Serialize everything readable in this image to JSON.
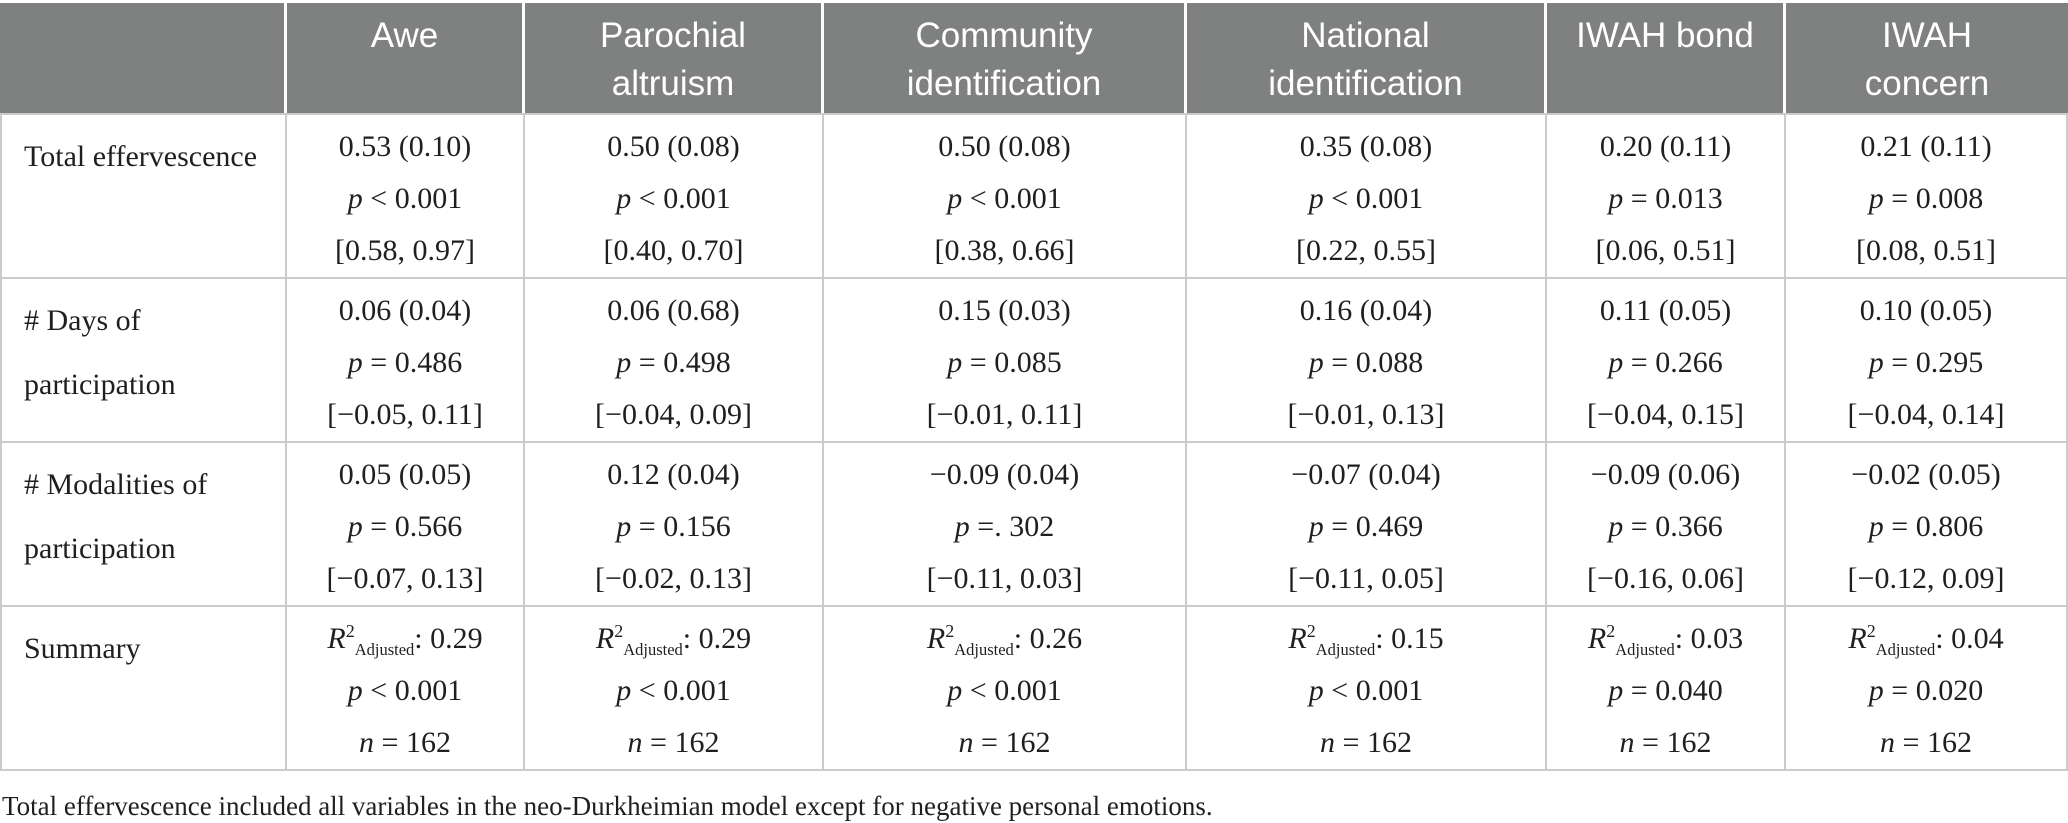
{
  "table": {
    "column_headers": [
      {
        "id": "row-variable",
        "lines": []
      },
      {
        "id": "awe",
        "lines": [
          "Awe"
        ]
      },
      {
        "id": "parochial-altruism",
        "lines": [
          "Parochial",
          "altruism"
        ]
      },
      {
        "id": "community-identification",
        "lines": [
          "Community",
          "identification"
        ]
      },
      {
        "id": "national-identification",
        "lines": [
          "National",
          "identification"
        ]
      },
      {
        "id": "iwah-bond",
        "lines": [
          "IWAH bond"
        ]
      },
      {
        "id": "iwah-concern",
        "lines": [
          "IWAH",
          "concern"
        ]
      }
    ],
    "rows": [
      {
        "id": "total-effervescence",
        "label_lines": [
          "Total effervescence"
        ],
        "type": "coef",
        "cells": [
          [
            "0.53 (0.10)",
            "p < 0.001",
            "[0.58, 0.97]"
          ],
          [
            "0.50 (0.08)",
            "p < 0.001",
            "[0.40, 0.70]"
          ],
          [
            "0.50 (0.08)",
            "p < 0.001",
            "[0.38, 0.66]"
          ],
          [
            "0.35 (0.08)",
            "p < 0.001",
            "[0.22, 0.55]"
          ],
          [
            "0.20 (0.11)",
            "p = 0.013",
            "[0.06, 0.51]"
          ],
          [
            "0.21 (0.11)",
            "p = 0.008",
            "[0.08, 0.51]"
          ]
        ]
      },
      {
        "id": "days-of-participation",
        "label_lines": [
          "# Days of",
          "participation"
        ],
        "type": "coef",
        "cells": [
          [
            "0.06 (0.04)",
            "p = 0.486",
            "[−0.05, 0.11]"
          ],
          [
            "0.06 (0.68)",
            "p = 0.498",
            "[−0.04, 0.09]"
          ],
          [
            "0.15 (0.03)",
            "p = 0.085",
            "[−0.01, 0.11]"
          ],
          [
            "0.16 (0.04)",
            "p = 0.088",
            "[−0.01, 0.13]"
          ],
          [
            "0.11 (0.05)",
            "p = 0.266",
            "[−0.04, 0.15]"
          ],
          [
            "0.10 (0.05)",
            "p = 0.295",
            "[−0.04, 0.14]"
          ]
        ]
      },
      {
        "id": "modalities-of-participation",
        "label_lines": [
          "# Modalities of",
          "participation"
        ],
        "type": "coef",
        "cells": [
          [
            "0.05 (0.05)",
            "p = 0.566",
            "[−0.07, 0.13]"
          ],
          [
            "0.12 (0.04)",
            "p = 0.156",
            "[−0.02, 0.13]"
          ],
          [
            "−0.09 (0.04)",
            "p =. 302",
            "[−0.11, 0.03]"
          ],
          [
            "−0.07 (0.04)",
            "p = 0.469",
            "[−0.11, 0.05]"
          ],
          [
            "−0.09 (0.06)",
            "p = 0.366",
            "[−0.16, 0.06]"
          ],
          [
            "−0.02 (0.05)",
            "p = 0.806",
            "[−0.12, 0.09]"
          ]
        ]
      },
      {
        "id": "summary",
        "label_lines": [
          "Summary"
        ],
        "type": "summary",
        "cells": [
          {
            "r2": "0.29",
            "p_line": "p < 0.001",
            "n_line": "n = 162"
          },
          {
            "r2": "0.29",
            "p_line": "p < 0.001",
            "n_line": "n = 162"
          },
          {
            "r2": "0.26",
            "p_line": "p < 0.001",
            "n_line": "n = 162"
          },
          {
            "r2": "0.15",
            "p_line": "p < 0.001",
            "n_line": "n = 162"
          },
          {
            "r2": "0.03",
            "p_line": "p = 0.040",
            "n_line": "n = 162"
          },
          {
            "r2": "0.04",
            "p_line": "p = 0.020",
            "n_line": "n = 162"
          }
        ]
      }
    ],
    "r2_notation": {
      "base": "R",
      "sup": "2",
      "sub": "Adjusted",
      "sep": ": "
    },
    "footnote": "Total effervescence included all variables in the neo-Durkheimian model except for negative personal emotions."
  },
  "colors": {
    "header_bg": "#7f8180",
    "header_text": "#ffffff",
    "body_text": "#1f1f1f",
    "grid_line": "#cbccca"
  }
}
